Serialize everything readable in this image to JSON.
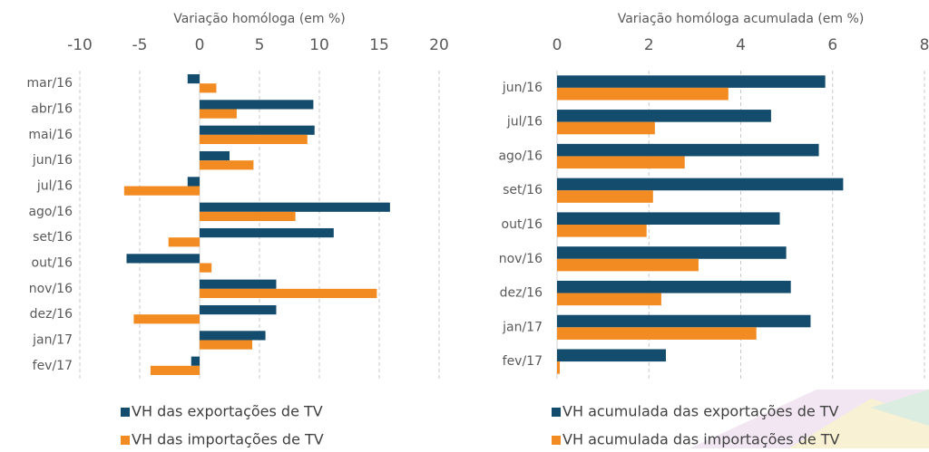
{
  "chart_data": [
    {
      "type": "bar",
      "orientation": "horizontal",
      "title": "Variação homóloga (em %)",
      "categories": [
        "mar/16",
        "abr/16",
        "mai/16",
        "jun/16",
        "jul/16",
        "ago/16",
        "set/16",
        "out/16",
        "nov/16",
        "dez/16",
        "jan/17",
        "fev/17"
      ],
      "series": [
        {
          "name": "VH das exportações de TV",
          "color": "#144c6e",
          "values": [
            -1.0,
            9.5,
            9.6,
            2.5,
            -1.0,
            15.9,
            11.2,
            -6.1,
            6.4,
            6.4,
            5.5,
            -0.7
          ]
        },
        {
          "name": "VH das importações de TV",
          "color": "#f28b21",
          "values": [
            1.4,
            3.1,
            9.0,
            4.5,
            -6.3,
            8.0,
            -2.6,
            1.0,
            14.8,
            -5.5,
            4.4,
            -4.1
          ]
        }
      ],
      "xlim": [
        -10,
        20
      ],
      "xticks": [
        -10,
        -5,
        0,
        5,
        10,
        15,
        20
      ],
      "grid": true,
      "legend": "bottom"
    },
    {
      "type": "bar",
      "orientation": "horizontal",
      "title": "Variação homóloga acumulada (em %)",
      "categories": [
        "jun/16",
        "jul/16",
        "ago/16",
        "set/16",
        "out/16",
        "nov/16",
        "dez/16",
        "jan/17",
        "fev/17"
      ],
      "series": [
        {
          "name": "VH acumulada das exportações de TV",
          "color": "#144c6e",
          "values": [
            5.84,
            4.66,
            5.7,
            6.23,
            4.85,
            4.99,
            5.09,
            5.52,
            2.37
          ]
        },
        {
          "name": "VH acumulada das importações de TV",
          "color": "#f28b21",
          "values": [
            3.73,
            2.13,
            2.78,
            2.09,
            1.95,
            3.08,
            2.27,
            4.34,
            0.06
          ]
        }
      ],
      "xlim": [
        0,
        8
      ],
      "xticks": [
        0,
        2,
        4,
        6,
        8
      ],
      "grid": true,
      "legend": "bottom"
    }
  ]
}
